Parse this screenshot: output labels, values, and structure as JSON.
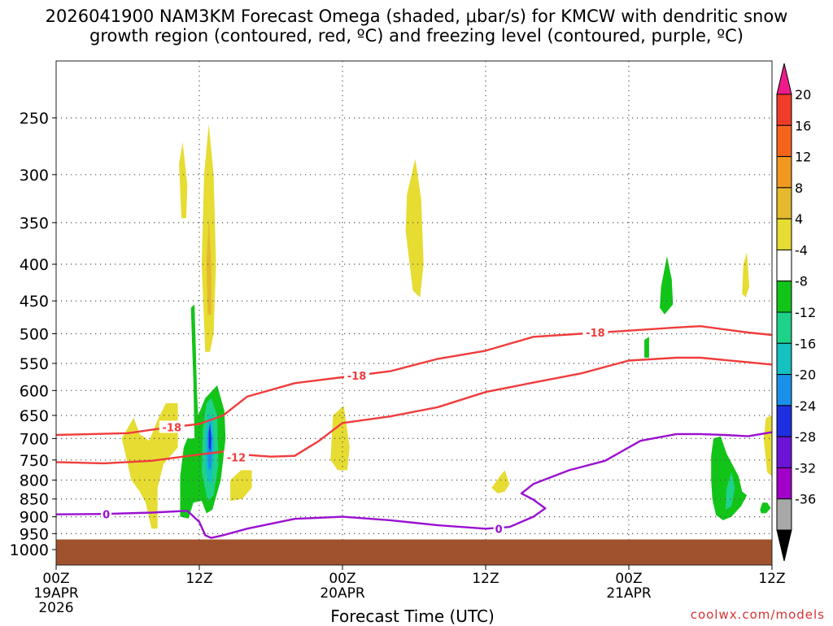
{
  "title": {
    "line1": "2026041900 NAM3KM Forecast Omega (shaded, μbar/s) for KMCW with dendritic snow",
    "line2": "growth region (contoured, red, ºC) and freezing level (contoured, purple, ºC)"
  },
  "footer": {
    "credit": "coolwx.com/models"
  },
  "chart_data": {
    "type": "heatmap",
    "xlabel": "Forecast Time (UTC)",
    "ylabel": "",
    "x_ticks": [
      {
        "hour": 0,
        "label": "00Z",
        "sub1": "19APR",
        "sub2": "2026"
      },
      {
        "hour": 12,
        "label": "12Z",
        "sub1": "",
        "sub2": ""
      },
      {
        "hour": 24,
        "label": "00Z",
        "sub1": "20APR",
        "sub2": ""
      },
      {
        "hour": 36,
        "label": "12Z",
        "sub1": "",
        "sub2": ""
      },
      {
        "hour": 48,
        "label": "00Z",
        "sub1": "21APR",
        "sub2": ""
      },
      {
        "hour": 60,
        "label": "12Z",
        "sub1": "",
        "sub2": ""
      }
    ],
    "xlim_hours": [
      0,
      60
    ],
    "y_ticks": [
      250,
      300,
      350,
      400,
      450,
      500,
      550,
      600,
      650,
      700,
      750,
      800,
      850,
      900,
      950,
      1000
    ],
    "ylim_hpa": [
      195,
      1040
    ],
    "ground_top_hpa": 968,
    "grid": true,
    "colorbar": {
      "labels": [
        "20",
        "16",
        "12",
        "8",
        "4",
        "-4",
        "-8",
        "-12",
        "-16",
        "-20",
        "-24",
        "-28",
        "-32",
        "-36"
      ],
      "colors": [
        "#ee1c8a",
        "#f03c28",
        "#f6641c",
        "#f09820",
        "#e6b82e",
        "#e6dc32",
        "#ffffff",
        "#12c418",
        "#1ed28a",
        "#14c0c0",
        "#1a90e8",
        "#1e2ee0",
        "#6a14d6",
        "#a000c8",
        "#a8a8a8",
        "#000000"
      ]
    },
    "dgz_color": "#f03c3c",
    "freezing_color": "#9a10d0",
    "dgz_top": {
      "label": "-18",
      "points": [
        [
          0,
          692
        ],
        [
          3,
          690
        ],
        [
          6,
          688
        ],
        [
          9,
          677
        ],
        [
          12,
          668
        ],
        [
          14,
          650
        ],
        [
          16,
          612
        ],
        [
          20,
          586
        ],
        [
          24,
          575
        ],
        [
          28,
          564
        ],
        [
          32,
          542
        ],
        [
          36,
          528
        ],
        [
          40,
          505
        ],
        [
          44,
          500
        ],
        [
          48,
          495
        ],
        [
          52,
          490
        ],
        [
          54,
          488
        ],
        [
          58,
          498
        ],
        [
          60,
          502
        ]
      ]
    },
    "dgz_bottom": {
      "label": "-12",
      "points": [
        [
          0,
          755
        ],
        [
          4,
          758
        ],
        [
          8,
          752
        ],
        [
          12,
          737
        ],
        [
          14,
          730
        ],
        [
          16,
          738
        ],
        [
          18,
          742
        ],
        [
          20,
          740
        ],
        [
          22,
          706
        ],
        [
          24,
          666
        ],
        [
          28,
          652
        ],
        [
          32,
          633
        ],
        [
          36,
          603
        ],
        [
          40,
          585
        ],
        [
          44,
          568
        ],
        [
          48,
          545
        ],
        [
          52,
          540
        ],
        [
          54,
          540
        ],
        [
          58,
          548
        ],
        [
          60,
          552
        ]
      ]
    },
    "freezing_level": {
      "label": "0",
      "points": [
        [
          0,
          893
        ],
        [
          4,
          892
        ],
        [
          8,
          888
        ],
        [
          11,
          883
        ],
        [
          12,
          915
        ],
        [
          12.5,
          955
        ],
        [
          13,
          963
        ],
        [
          14,
          955
        ],
        [
          16,
          935
        ],
        [
          20,
          906
        ],
        [
          24,
          900
        ],
        [
          28,
          910
        ],
        [
          32,
          925
        ],
        [
          36,
          935
        ],
        [
          38,
          930
        ],
        [
          40,
          900
        ],
        [
          41,
          876
        ],
        [
          40,
          852
        ],
        [
          39,
          835
        ],
        [
          40,
          810
        ],
        [
          43,
          775
        ],
        [
          46,
          752
        ],
        [
          49,
          705
        ],
        [
          52,
          690
        ],
        [
          54,
          690
        ],
        [
          56,
          692
        ],
        [
          58,
          695
        ],
        [
          60,
          686
        ]
      ]
    },
    "contour_labels": [
      {
        "text": "-18",
        "hour": 9.7,
        "hpa": 675
      },
      {
        "text": "-12",
        "hour": 15.1,
        "hpa": 744
      },
      {
        "text": "-18",
        "hour": 25.2,
        "hpa": 572
      },
      {
        "text": "-18",
        "hour": 45.2,
        "hpa": 498
      },
      {
        "text": "0",
        "hour": 4.2,
        "hpa": 893
      },
      {
        "text": "0",
        "hour": 37.1,
        "hpa": 936
      }
    ],
    "omega_regions": [
      {
        "value": 4,
        "points": [
          [
            6,
            760
          ],
          [
            5.5,
            700
          ],
          [
            6.5,
            655
          ],
          [
            7,
            690
          ],
          [
            7.8,
            705
          ],
          [
            8.5,
            660
          ],
          [
            9.2,
            625
          ],
          [
            10.2,
            625
          ],
          [
            10.2,
            720
          ],
          [
            9,
            760
          ],
          [
            8.5,
            820
          ],
          [
            8.5,
            935
          ],
          [
            8,
            935
          ],
          [
            7.5,
            860
          ],
          [
            7,
            830
          ],
          [
            6.3,
            800
          ]
        ]
      },
      {
        "value": 4,
        "points": [
          [
            10.5,
            345
          ],
          [
            10.3,
            290
          ],
          [
            10.6,
            270
          ],
          [
            11,
            310
          ],
          [
            10.9,
            345
          ]
        ]
      },
      {
        "value": 4,
        "points": [
          [
            12.5,
            530
          ],
          [
            12.2,
            400
          ],
          [
            12.4,
            300
          ],
          [
            12.8,
            255
          ],
          [
            13.2,
            300
          ],
          [
            13.4,
            400
          ],
          [
            13.2,
            500
          ],
          [
            12.9,
            530
          ]
        ]
      },
      {
        "value": 8,
        "points": [
          [
            12.7,
            470
          ],
          [
            12.6,
            400
          ],
          [
            12.8,
            345
          ],
          [
            13.0,
            400
          ],
          [
            13.0,
            470
          ]
        ]
      },
      {
        "value": 4,
        "points": [
          [
            14.6,
            855
          ],
          [
            14.6,
            800
          ],
          [
            15.5,
            775
          ],
          [
            16.4,
            775
          ],
          [
            16.4,
            820
          ],
          [
            15.6,
            850
          ]
        ]
      },
      {
        "value": 4,
        "points": [
          [
            23,
            750
          ],
          [
            23.2,
            650
          ],
          [
            24.1,
            630
          ],
          [
            24.6,
            720
          ],
          [
            24.4,
            775
          ],
          [
            23.6,
            775
          ]
        ]
      },
      {
        "value": 4,
        "points": [
          [
            29.3,
            360
          ],
          [
            29.4,
            320
          ],
          [
            30.1,
            285
          ],
          [
            30.6,
            325
          ],
          [
            30.8,
            400
          ],
          [
            30.5,
            445
          ],
          [
            29.9,
            435
          ]
        ]
      },
      {
        "value": 4,
        "points": [
          [
            36.5,
            820
          ],
          [
            37.2,
            790
          ],
          [
            37.6,
            775
          ],
          [
            38,
            810
          ],
          [
            37.6,
            830
          ],
          [
            37,
            835
          ]
        ]
      },
      {
        "value": 4,
        "points": [
          [
            57.5,
            440
          ],
          [
            57.6,
            400
          ],
          [
            57.9,
            385
          ],
          [
            58.1,
            430
          ],
          [
            57.8,
            445
          ]
        ]
      },
      {
        "value": 4,
        "points": [
          [
            59.3,
            700
          ],
          [
            59.5,
            655
          ],
          [
            60,
            650
          ],
          [
            60,
            790
          ],
          [
            59.6,
            780
          ]
        ]
      },
      {
        "value": -4,
        "points": [
          [
            10.4,
            900
          ],
          [
            10.4,
            790
          ],
          [
            10.7,
            720
          ],
          [
            11,
            700
          ],
          [
            11.6,
            700
          ],
          [
            11.5,
            580
          ],
          [
            11.4,
            520
          ],
          [
            11.3,
            460
          ],
          [
            11.6,
            455
          ],
          [
            11.7,
            520
          ],
          [
            11.8,
            600
          ],
          [
            11.9,
            650
          ],
          [
            12.5,
            615
          ],
          [
            13.5,
            590
          ],
          [
            14.1,
            640
          ],
          [
            14.2,
            700
          ],
          [
            13.8,
            800
          ],
          [
            13.1,
            880
          ],
          [
            12.6,
            890
          ],
          [
            12.2,
            855
          ],
          [
            11.5,
            860
          ],
          [
            11.1,
            905
          ]
        ]
      },
      {
        "value": -8,
        "points": [
          [
            12.2,
            780
          ],
          [
            12.3,
            680
          ],
          [
            12.6,
            625
          ],
          [
            13.0,
            615
          ],
          [
            13.5,
            650
          ],
          [
            13.6,
            760
          ],
          [
            13.2,
            840
          ],
          [
            12.7,
            855
          ]
        ]
      },
      {
        "value": -12,
        "points": [
          [
            12.5,
            760
          ],
          [
            12.5,
            690
          ],
          [
            12.8,
            645
          ],
          [
            13.1,
            655
          ],
          [
            13.3,
            720
          ],
          [
            13.0,
            810
          ],
          [
            12.7,
            800
          ]
        ]
      },
      {
        "value": -16,
        "points": [
          [
            12.7,
            740
          ],
          [
            12.7,
            690
          ],
          [
            12.9,
            660
          ],
          [
            13.1,
            700
          ],
          [
            13.0,
            770
          ],
          [
            12.8,
            775
          ]
        ]
      },
      {
        "value": -20,
        "points": [
          [
            12.8,
            720
          ],
          [
            12.8,
            685
          ],
          [
            12.9,
            668
          ],
          [
            13.0,
            700
          ],
          [
            12.95,
            730
          ]
        ]
      },
      {
        "value": -4,
        "points": [
          [
            50.6,
            460
          ],
          [
            50.7,
            430
          ],
          [
            51.2,
            390
          ],
          [
            51.6,
            420
          ],
          [
            51.7,
            455
          ],
          [
            51.0,
            470
          ]
        ]
      },
      {
        "value": -4,
        "points": [
          [
            49.3,
            540
          ],
          [
            49.3,
            510
          ],
          [
            49.7,
            505
          ],
          [
            49.7,
            540
          ]
        ]
      },
      {
        "value": -4,
        "points": [
          [
            54.9,
            800
          ],
          [
            54.9,
            740
          ],
          [
            55.1,
            700
          ],
          [
            55.7,
            695
          ],
          [
            56.2,
            735
          ],
          [
            57.2,
            790
          ],
          [
            57.5,
            830
          ],
          [
            57.9,
            840
          ],
          [
            57.4,
            870
          ],
          [
            56.6,
            900
          ],
          [
            55.9,
            910
          ],
          [
            55.3,
            895
          ],
          [
            55.0,
            850
          ]
        ]
      },
      {
        "value": -8,
        "points": [
          [
            56.1,
            880
          ],
          [
            56.2,
            820
          ],
          [
            56.6,
            780
          ],
          [
            56.9,
            820
          ],
          [
            56.6,
            870
          ]
        ]
      },
      {
        "value": -4,
        "points": [
          [
            59.0,
            880
          ],
          [
            59.2,
            860
          ],
          [
            59.6,
            860
          ],
          [
            59.9,
            875
          ],
          [
            59.5,
            890
          ],
          [
            59.1,
            890
          ]
        ]
      }
    ]
  }
}
